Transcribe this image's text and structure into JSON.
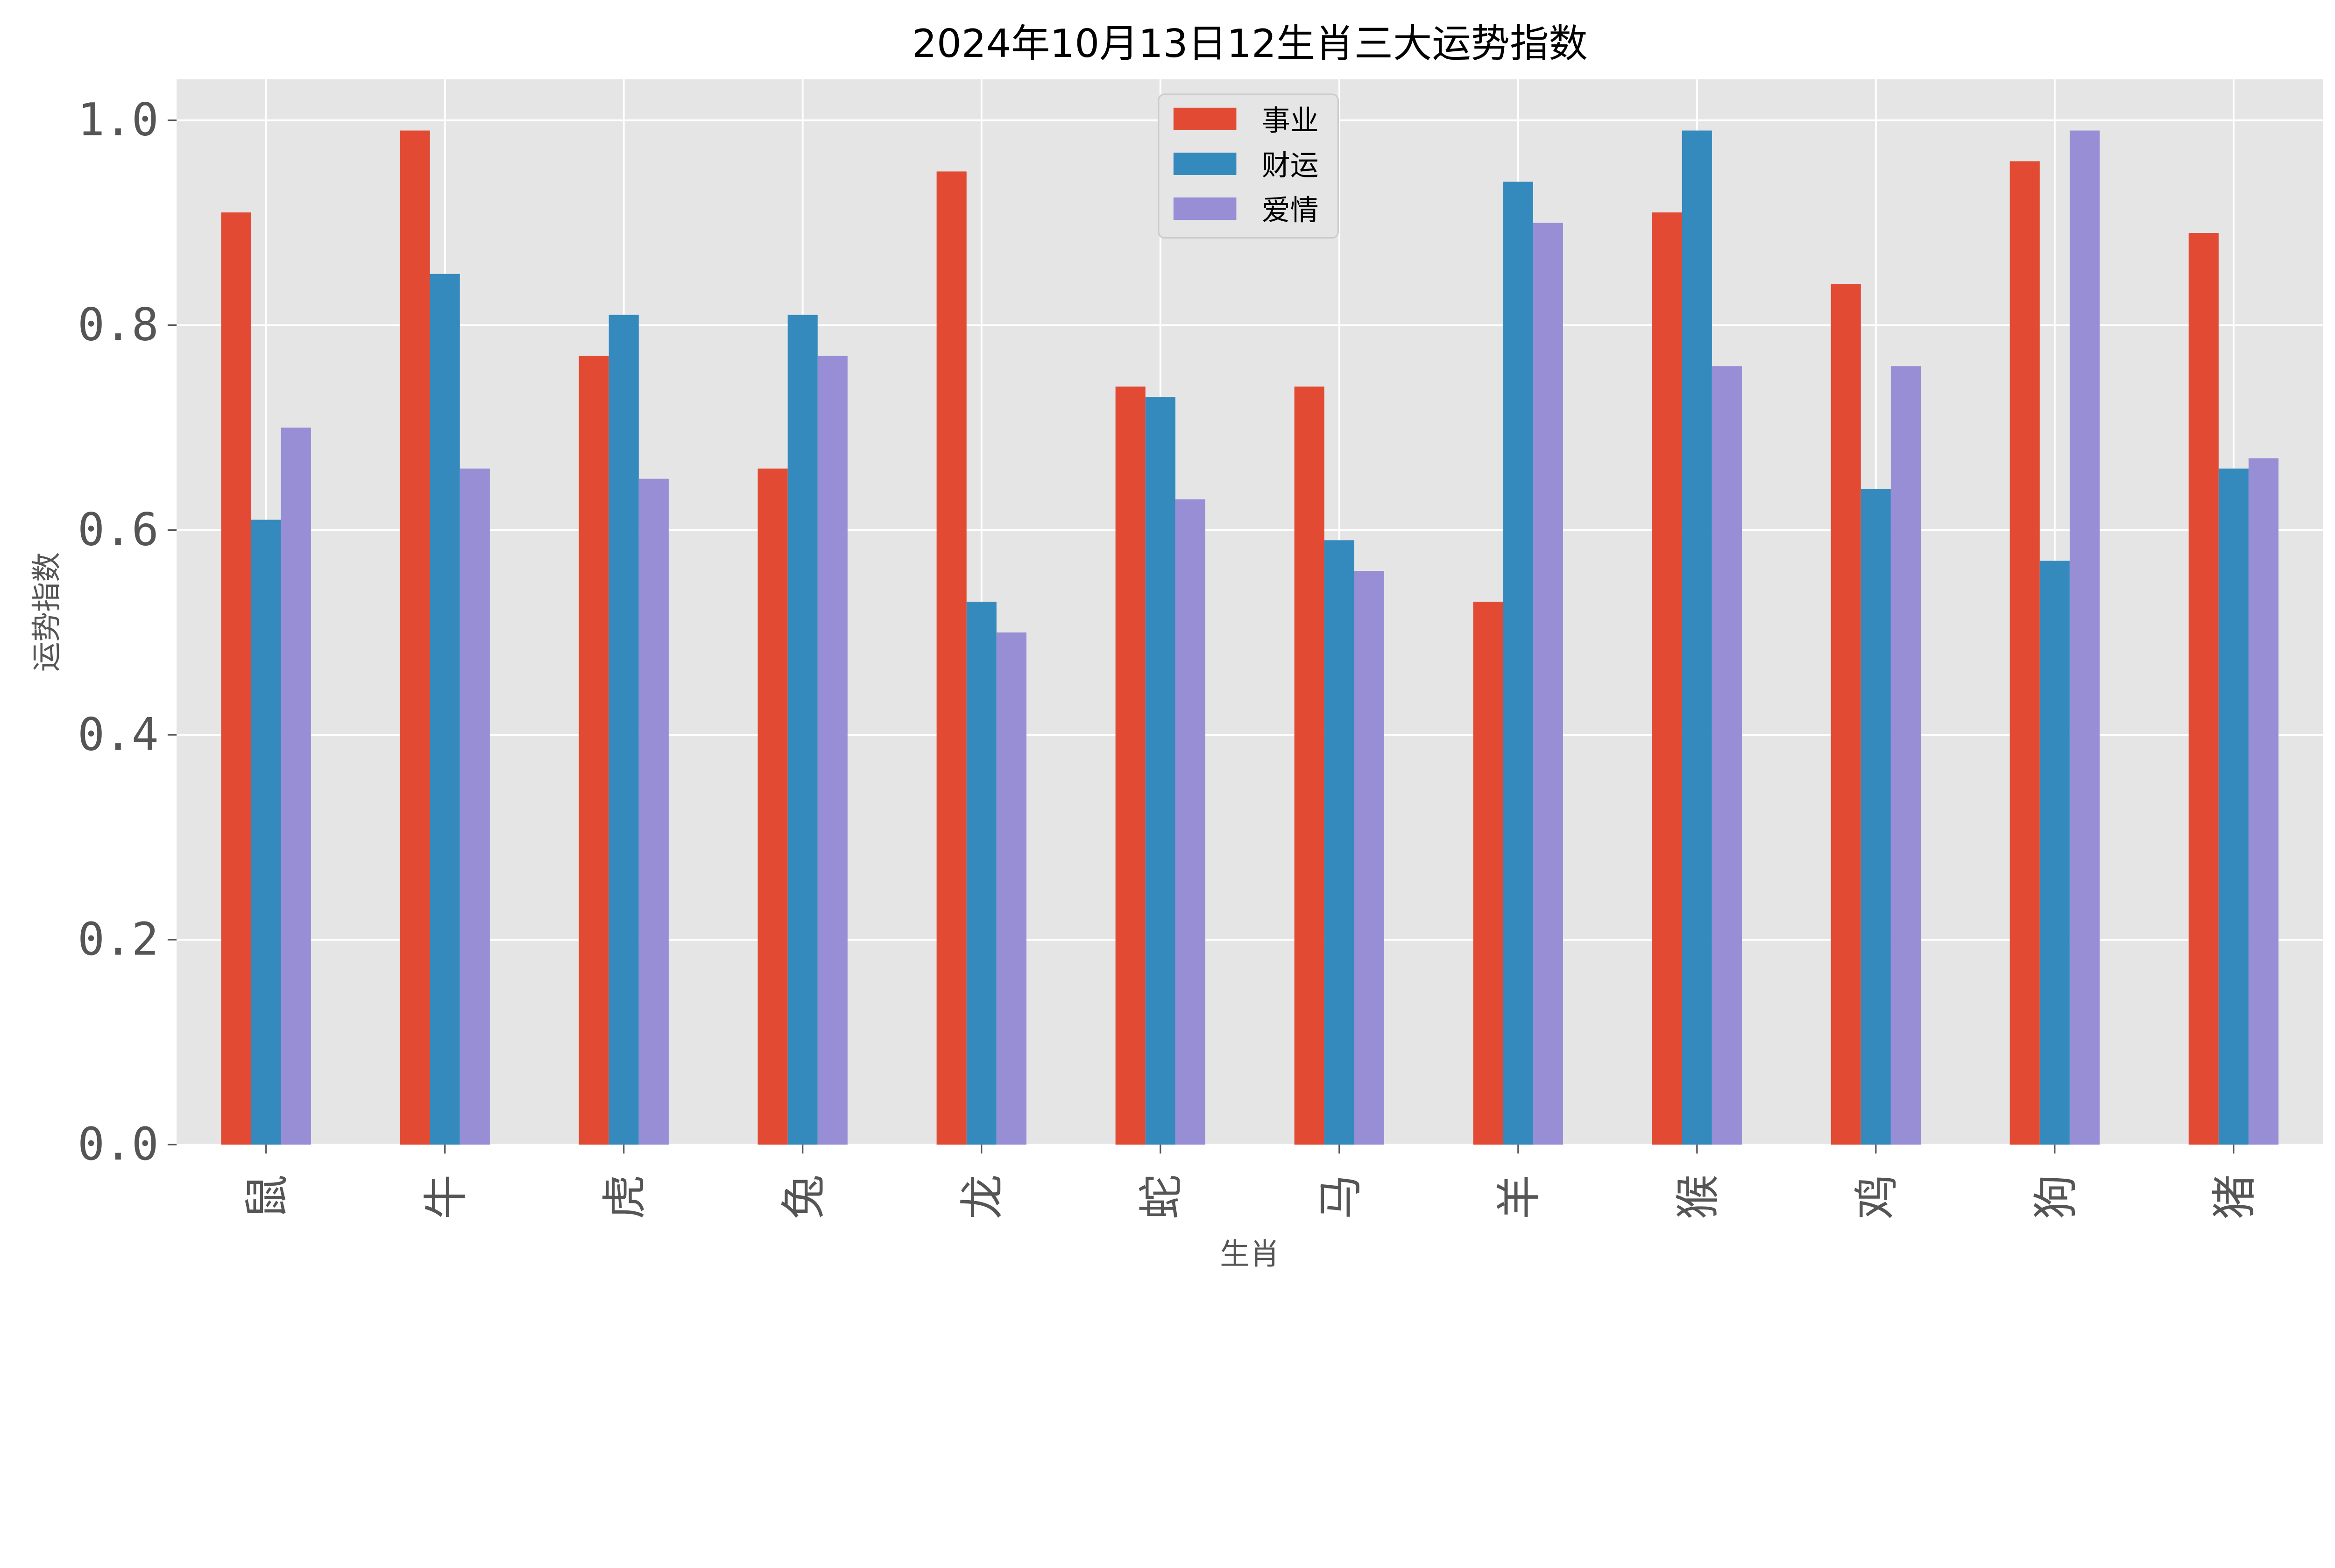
{
  "chart_data": {
    "type": "bar",
    "title": "2024年10月13日12生肖三大运势指数",
    "xlabel": "生肖",
    "ylabel": "运势指数",
    "ylim": [
      0,
      1.04
    ],
    "yticks": [
      "0.0",
      "0.2",
      "0.4",
      "0.6",
      "0.8",
      "1.0"
    ],
    "grid": true,
    "legend_position": "top-center",
    "categories": [
      "鼠",
      "牛",
      "虎",
      "兔",
      "龙",
      "蛇",
      "马",
      "羊",
      "猴",
      "鸡",
      "狗",
      "猪"
    ],
    "series": [
      {
        "name": "事业",
        "color": "#E24A33",
        "values": [
          0.91,
          0.99,
          0.77,
          0.66,
          0.95,
          0.74,
          0.74,
          0.53,
          0.91,
          0.84,
          0.96,
          0.89
        ]
      },
      {
        "name": "财运",
        "color": "#348ABD",
        "values": [
          0.61,
          0.85,
          0.81,
          0.81,
          0.53,
          0.73,
          0.59,
          0.94,
          0.99,
          0.64,
          0.57,
          0.66
        ]
      },
      {
        "name": "爱情",
        "color": "#988ED5",
        "values": [
          0.7,
          0.66,
          0.65,
          0.77,
          0.5,
          0.63,
          0.56,
          0.9,
          0.76,
          0.76,
          0.99,
          0.67
        ]
      }
    ]
  }
}
